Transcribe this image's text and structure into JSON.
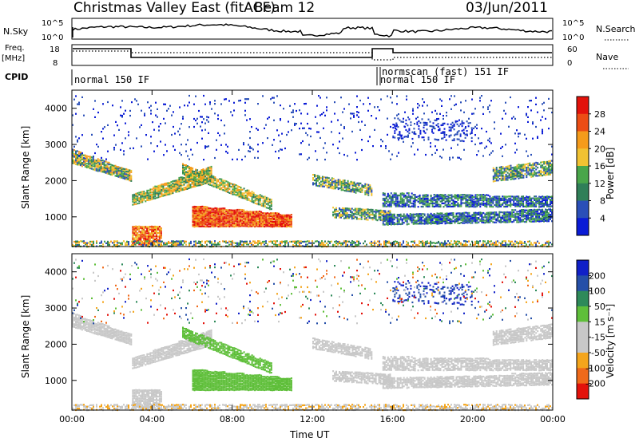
{
  "header": {
    "title": "Christmas Valley East (fitACF)",
    "beam": "Beam 12",
    "date": "03/Jun/2011"
  },
  "panels": {
    "nsky": {
      "label": "N.Sky",
      "tick_top": "10^5",
      "tick_bottom": "10^0",
      "right_tick_top": "10^5",
      "right_tick_bottom": "10^0",
      "right_label": "N.Search"
    },
    "freq": {
      "label_line1": "Freq.",
      "label_line2": "[MHz]",
      "tick_top": "18",
      "tick_bottom": "8",
      "right_tick_top": "60",
      "right_tick_bottom": "0",
      "right_label": "Nave"
    },
    "cpid": {
      "label": "CPID",
      "entries": [
        "normal 150 IF",
        "normal 150 IF",
        "normscan (fast) 151 IF"
      ]
    }
  },
  "colors": {
    "power": [
      "#0a1bd6",
      "#2a4fb8",
      "#2f7f58",
      "#49a64a",
      "#f1c232",
      "#f59b1b",
      "#ec4d14",
      "#e3120b"
    ],
    "velocity": [
      "#e3120b",
      "#f06a1a",
      "#f4a51c",
      "#c8c8c8",
      "#c8c8c8",
      "#5fbf3a",
      "#2e8a5a",
      "#254fa8",
      "#1020c8"
    ]
  },
  "chart_data": [
    {
      "type": "heatmap",
      "name": "power",
      "xlabel": "",
      "ylabel": "Slant Range [km]",
      "xlim": [
        0,
        24
      ],
      "ylim": [
        180,
        4500
      ],
      "xticks": [
        "00:00",
        "04:00",
        "08:00",
        "12:00",
        "16:00",
        "20:00",
        "00:00"
      ],
      "yticks": [
        "1000",
        "2000",
        "3000",
        "4000"
      ],
      "colorbar": {
        "label": "Power [dB]",
        "ticks": [
          "28",
          "24",
          "20",
          "16",
          "12",
          "8",
          "4"
        ]
      }
    },
    {
      "type": "heatmap",
      "name": "velocity",
      "xlabel": "Time UT",
      "ylabel": "Slant Range [km]",
      "xlim": [
        0,
        24
      ],
      "ylim": [
        180,
        4500
      ],
      "xticks": [
        "00:00",
        "04:00",
        "08:00",
        "12:00",
        "16:00",
        "20:00",
        "00:00"
      ],
      "yticks": [
        "1000",
        "2000",
        "3000",
        "4000"
      ],
      "colorbar": {
        "label": "Velocity [m s⁻¹]",
        "ticks": [
          "200",
          "100",
          "50",
          "15",
          "-15",
          "-50",
          "-100",
          "-200"
        ]
      }
    }
  ]
}
